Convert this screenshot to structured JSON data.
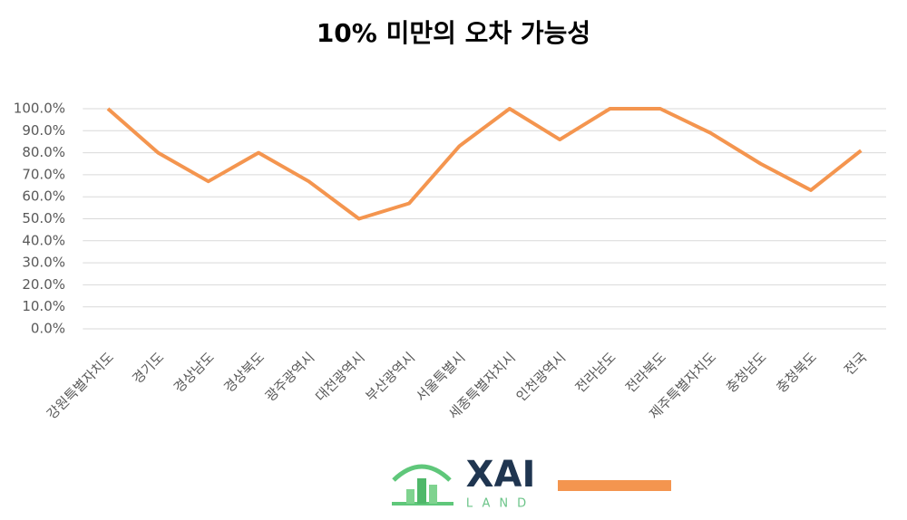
{
  "chart_data": {
    "type": "line",
    "title": "10% 미만의 오차 가능성",
    "categories": [
      "강원특별자치도",
      "경기도",
      "경상남도",
      "경상북도",
      "광주광역시",
      "대전광역시",
      "부산광역시",
      "서울특별시",
      "세종특별자치시",
      "인천광역시",
      "전라남도",
      "전라북도",
      "제주특별자치도",
      "충청남도",
      "충청북도",
      "전국"
    ],
    "values": [
      100,
      80,
      67,
      80,
      67,
      50,
      57,
      83,
      100,
      86,
      100,
      100,
      89,
      75,
      63,
      81
    ],
    "color": "#f4954f",
    "ylim": [
      0,
      100
    ],
    "yticks": [
      {
        "value": 0,
        "label": "0.0%"
      },
      {
        "value": 10,
        "label": "10.0%"
      },
      {
        "value": 20,
        "label": "20.0%"
      },
      {
        "value": 30,
        "label": "30.0%"
      },
      {
        "value": 40,
        "label": "40.0%"
      },
      {
        "value": 50,
        "label": "50.0%"
      },
      {
        "value": 60,
        "label": "60.0%"
      },
      {
        "value": 70,
        "label": "70.0%"
      },
      {
        "value": 80,
        "label": "80.0%"
      },
      {
        "value": 90,
        "label": "90.0%"
      },
      {
        "value": 100,
        "label": "100.0%"
      }
    ],
    "grid": true
  },
  "logo": {
    "text": "XAI",
    "subtext": "LAND"
  }
}
